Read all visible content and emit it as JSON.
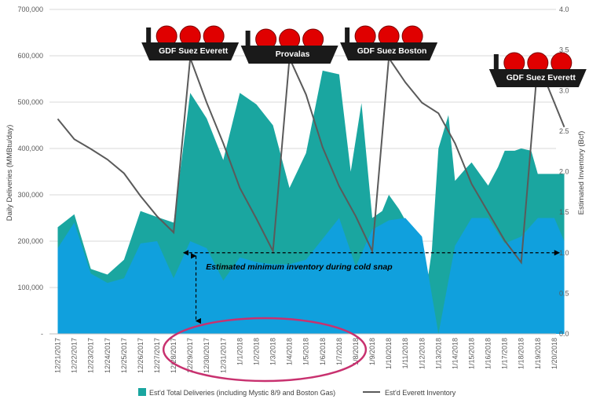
{
  "chart_data": {
    "type": "area",
    "categories": [
      "12/21/2017",
      "12/22/2017",
      "12/23/2017",
      "12/24/2017",
      "12/25/2017",
      "12/26/2017",
      "12/27/2017",
      "12/28/2017",
      "12/29/2017",
      "12/30/2017",
      "12/31/2017",
      "1/1/2018",
      "1/2/2018",
      "1/3/2018",
      "1/4/2018",
      "1/5/2018",
      "1/6/2018",
      "1/7/2018",
      "1/8/2018",
      "1/9/2018",
      "1/10/2018",
      "1/11/2018",
      "1/12/2018",
      "1/13/2018",
      "1/14/2018",
      "1/15/2018",
      "1/16/2018",
      "1/17/2018",
      "1/18/2018",
      "1/19/2018",
      "1/20/2018"
    ],
    "x_ticks_display": [
      "12/21/2017",
      "12/22/2017",
      "12/23/2017",
      "12/24/2017",
      "12/25/2017",
      "12/26/2017",
      "12/27/2017",
      "12/28/2017",
      "12/29/2017",
      "12/30/2017",
      "12/31/2017",
      "1/1/2018",
      "1/2/2018",
      "1/3/2018",
      "1/4/2018",
      "1/5/2018",
      "1/6/2018",
      "1/7/2018",
      "1/8/2018",
      "1/9/2018",
      "1/10/2018",
      "1/11/2018",
      "1/12/2018",
      "1/13/2018",
      "1/14/2018",
      "1/15/2018",
      "1/16/2018",
      "1/17/2018",
      "1/18/2018",
      "1/19/2018",
      "1/20/2018"
    ],
    "series": [
      {
        "name": "Est'd Total Deliveries (including Mystic 8/9 and Boston Gas)",
        "kind": "area",
        "axis": "left",
        "color": "#1aa6a0",
        "x": [
          0,
          1,
          2,
          3,
          4,
          5,
          6,
          7,
          8,
          9,
          10,
          11,
          12,
          13,
          14,
          15,
          16,
          17,
          17.7,
          18.35,
          19,
          19.6,
          20,
          20.6,
          21,
          21.6,
          22,
          22.6,
          23,
          23.6,
          24,
          24.6,
          25,
          25.6,
          26,
          26.6,
          27,
          27.6,
          28,
          28.6,
          29,
          30,
          30.6
        ],
        "values": [
          230000,
          258000,
          140000,
          128000,
          160000,
          265000,
          252000,
          240000,
          520000,
          465000,
          375000,
          520000,
          495000,
          450000,
          315000,
          390000,
          568000,
          560000,
          350000,
          498000,
          250000,
          265000,
          300000,
          270000,
          245000,
          140000,
          30000,
          180000,
          400000,
          472000,
          330000,
          355000,
          370000,
          340000,
          320000,
          360000,
          395000,
          395000,
          400000,
          395000,
          345000,
          345000,
          345000
        ]
      },
      {
        "name": "Est'd Everett Inventory",
        "kind": "line",
        "axis": "right",
        "color": "#5a5a5a",
        "x": [
          0,
          1,
          2,
          3,
          4,
          5,
          6,
          7,
          8,
          9,
          10,
          11,
          12,
          13,
          14,
          15,
          16,
          17,
          18,
          19,
          20,
          21,
          22,
          23,
          24,
          25,
          26,
          27,
          28,
          29,
          30,
          30.6
        ],
        "values": [
          2.65,
          2.4,
          2.28,
          2.15,
          1.98,
          1.7,
          1.45,
          1.25,
          3.4,
          2.85,
          2.35,
          1.8,
          1.42,
          1.02,
          3.4,
          2.95,
          2.3,
          1.82,
          1.45,
          1.02,
          3.4,
          3.1,
          2.85,
          2.72,
          2.35,
          1.85,
          1.5,
          1.15,
          0.88,
          3.35,
          2.85,
          2.55
        ]
      },
      {
        "name": "",
        "kind": "area",
        "axis": "left",
        "color": "#10a0dd",
        "x": [
          0,
          1,
          2,
          3,
          4,
          5,
          6,
          7,
          8,
          9,
          10,
          11,
          12,
          13,
          14,
          15,
          16,
          17,
          18,
          19,
          20,
          21,
          22,
          23,
          24,
          25,
          26,
          27,
          28,
          29,
          30,
          30.6
        ],
        "values": [
          185000,
          240000,
          130000,
          110000,
          120000,
          195000,
          200000,
          120000,
          200000,
          185000,
          115000,
          165000,
          155000,
          150000,
          150000,
          160000,
          205000,
          250000,
          145000,
          225000,
          245000,
          250000,
          210000,
          0,
          190000,
          250000,
          250000,
          195000,
          210000,
          250000,
          250000,
          200000
        ]
      }
    ],
    "y_left": {
      "label": "Daily Deliveries (MMBtu/day)",
      "min": 0,
      "max": 700000,
      "ticks": [
        "-",
        "100,000",
        "200,000",
        "300,000",
        "400,000",
        "500,000",
        "600,000",
        "700,000"
      ]
    },
    "y_right": {
      "label": "Estimated Inventory (Bcf)",
      "min": 0,
      "max": 4,
      "ticks": [
        "0.0",
        "0.5",
        "1.0",
        "1.5",
        "2.0",
        "2.5",
        "3.0",
        "3.5",
        "4.0"
      ]
    },
    "grid": true,
    "legend_position": "bottom",
    "ships": [
      {
        "label": "GDF Suez Everett",
        "x_index": 8
      },
      {
        "label": "Provalas",
        "x_index": 14
      },
      {
        "label": "GDF Suez Boston",
        "x_index": 20
      },
      {
        "label": "GDF Suez Everett",
        "x_index": 29
      }
    ],
    "annotation": {
      "text": "Estimated minimum inventory during cold snap",
      "inventory_level": 1.0
    },
    "highlight": {
      "shape": "ellipse",
      "covers": [
        "12/29/2017",
        "1/7/2018"
      ],
      "color": "#c8316f"
    }
  }
}
